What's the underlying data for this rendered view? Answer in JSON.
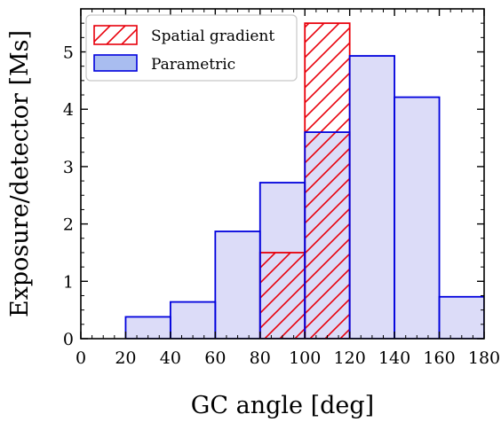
{
  "chart_data": {
    "type": "bar",
    "title": "",
    "xlabel": "GC angle [deg]",
    "ylabel": "Exposure/detector [Ms]",
    "xlim": [
      0,
      180
    ],
    "ylim": [
      0,
      5.75
    ],
    "xticks": [
      0,
      20,
      40,
      60,
      80,
      100,
      120,
      140,
      160,
      180
    ],
    "yticks": [
      0,
      1,
      2,
      3,
      4,
      5
    ],
    "bin_edges": [
      20,
      40,
      60,
      80,
      100,
      120,
      140,
      160,
      180
    ],
    "grid": false,
    "legend_position": "top-left",
    "series": [
      {
        "name": "Spatial gradient",
        "style": "hatched",
        "color": "#e8000b",
        "bins": [
          {
            "x0": 80,
            "x1": 100,
            "value": 1.5
          },
          {
            "x0": 100,
            "x1": 120,
            "value": 5.5
          }
        ]
      },
      {
        "name": "Parametric",
        "style": "filled",
        "color": "#0000dd",
        "fill": "#dcdcf8",
        "bins": [
          {
            "x0": 20,
            "x1": 40,
            "value": 0.38
          },
          {
            "x0": 40,
            "x1": 60,
            "value": 0.64
          },
          {
            "x0": 60,
            "x1": 80,
            "value": 1.87
          },
          {
            "x0": 80,
            "x1": 100,
            "value": 2.72
          },
          {
            "x0": 100,
            "x1": 120,
            "value": 3.6
          },
          {
            "x0": 120,
            "x1": 140,
            "value": 4.93
          },
          {
            "x0": 140,
            "x1": 160,
            "value": 4.21
          },
          {
            "x0": 160,
            "x1": 180,
            "value": 0.73
          }
        ]
      }
    ]
  }
}
